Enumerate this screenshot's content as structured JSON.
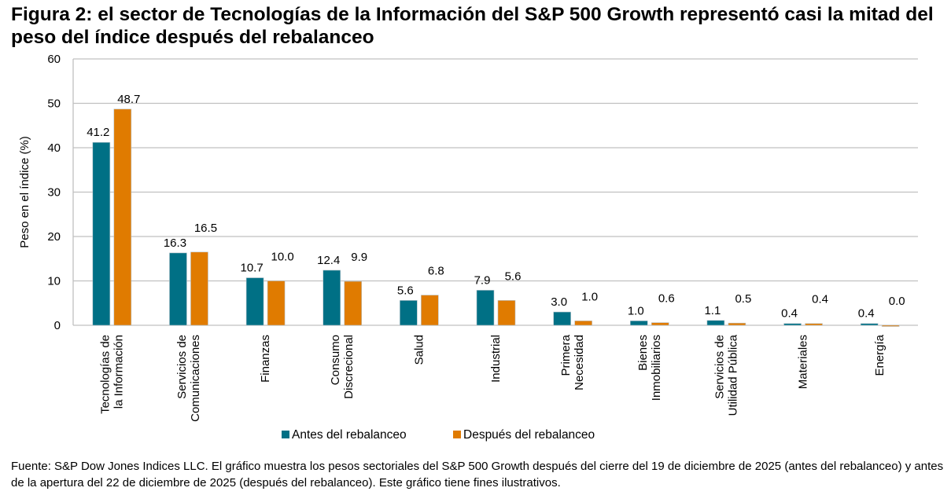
{
  "title": "Figura 2: el sector de Tecnologías de la Información del S&P 500 Growth representó casi la mitad del peso del índice después del rebalanceo",
  "footnote": "Fuente: S&P Dow Jones Indices LLC. El gráfico muestra los pesos sectoriales del S&P 500 Growth después del cierre del 19 de diciembre de 2025 (antes del rebalanceo) y antes de la apertura del 22 de diciembre de 2025 (después del rebalanceo). Este gráfico tiene fines ilustrativos.",
  "chart_data": {
    "type": "bar",
    "ylabel": "Peso en el índice (%)",
    "ylim": [
      0,
      60
    ],
    "yticks": [
      0,
      10,
      20,
      30,
      40,
      50,
      60
    ],
    "grid": true,
    "legend": "bottom",
    "categories": [
      [
        "Tecnologías de",
        "la Información"
      ],
      [
        "Servicios de",
        "Comunicaciones"
      ],
      [
        "Finanzas"
      ],
      [
        "Consumo",
        "Discrecional"
      ],
      [
        "Salud"
      ],
      [
        "Industrial"
      ],
      [
        "Primera",
        "Necesidad"
      ],
      [
        "Bienes",
        "Inmobiliarios"
      ],
      [
        "Servicios de",
        "Utilidad Pública"
      ],
      [
        "Materiales"
      ],
      [
        "Energía"
      ]
    ],
    "series": [
      {
        "name": "Antes del rebalanceo",
        "color": "#007085",
        "values": [
          41.2,
          16.3,
          10.7,
          12.4,
          5.6,
          7.9,
          3.0,
          1.0,
          1.1,
          0.4,
          0.4
        ]
      },
      {
        "name": "Después del rebalanceo",
        "color": "#E07B00",
        "values": [
          48.7,
          16.5,
          10.0,
          9.9,
          6.8,
          5.6,
          1.0,
          0.6,
          0.5,
          0.4,
          0.0
        ]
      }
    ]
  }
}
